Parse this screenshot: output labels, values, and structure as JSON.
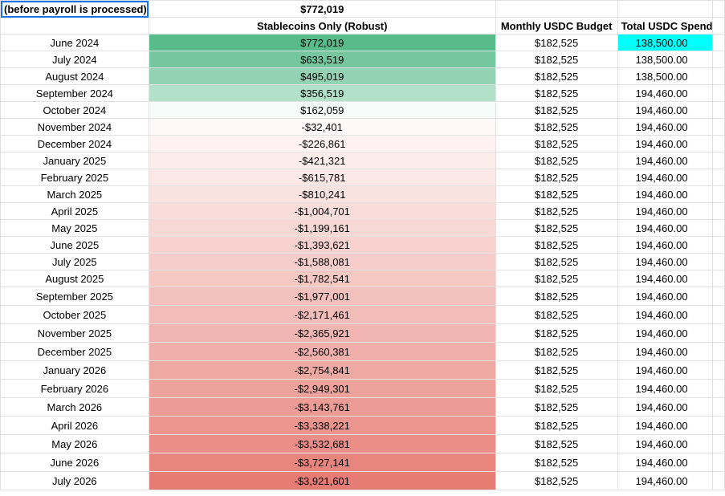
{
  "top": {
    "note": "(before payroll is processed)",
    "start_value": "$772,019"
  },
  "headers": {
    "col_b": "Stablecoins Only (Robust)",
    "col_c": "Monthly USDC Budget",
    "col_d": "Total USDC Spend"
  },
  "colors": {
    "positive_max": "#57bb8a",
    "neutral": "#ffffff",
    "negative_max": "#e67c73",
    "highlight": "#00ffff",
    "selection": "#1a73e8"
  },
  "rows": [
    {
      "month": "June 2024",
      "balance": "$772,019",
      "budget": "$182,525",
      "spend": "138,500.00",
      "level": 1.0
    },
    {
      "month": "July 2024",
      "balance": "$633,519",
      "budget": "$182,525",
      "spend": "138,500.00",
      "level": 0.82
    },
    {
      "month": "August 2024",
      "balance": "$495,019",
      "budget": "$182,525",
      "spend": "138,500.00",
      "level": 0.64
    },
    {
      "month": "September 2024",
      "balance": "$356,519",
      "budget": "$182,525",
      "spend": "194,460.00",
      "level": 0.46
    },
    {
      "month": "October 2024",
      "balance": "$162,059",
      "budget": "$182,525",
      "spend": "194,460.00",
      "level": 0.06
    },
    {
      "month": "November 2024",
      "balance": "-$32,401",
      "budget": "$182,525",
      "spend": "194,460.00",
      "level": -0.06
    },
    {
      "month": "December 2024",
      "balance": "-$226,861",
      "budget": "$182,525",
      "spend": "194,460.00",
      "level": -0.1
    },
    {
      "month": "January 2025",
      "balance": "-$421,321",
      "budget": "$182,525",
      "spend": "194,460.00",
      "level": -0.14
    },
    {
      "month": "February 2025",
      "balance": "-$615,781",
      "budget": "$182,525",
      "spend": "194,460.00",
      "level": -0.18
    },
    {
      "month": "March 2025",
      "balance": "-$810,241",
      "budget": "$182,525",
      "spend": "194,460.00",
      "level": -0.22
    },
    {
      "month": "April 2025",
      "balance": "-$1,004,701",
      "budget": "$182,525",
      "spend": "194,460.00",
      "level": -0.26
    },
    {
      "month": "May 2025",
      "balance": "-$1,199,161",
      "budget": "$182,525",
      "spend": "194,460.00",
      "level": -0.3
    },
    {
      "month": "June 2025",
      "balance": "-$1,393,621",
      "budget": "$182,525",
      "spend": "194,460.00",
      "level": -0.34
    },
    {
      "month": "July 2025",
      "balance": "-$1,588,081",
      "budget": "$182,525",
      "spend": "194,460.00",
      "level": -0.38
    },
    {
      "month": "August 2025",
      "balance": "-$1,782,541",
      "budget": "$182,525",
      "spend": "194,460.00",
      "level": -0.42
    },
    {
      "month": "September 2025",
      "balance": "-$1,977,001",
      "budget": "$182,525",
      "spend": "194,460.00",
      "level": -0.47
    },
    {
      "month": "October 2025",
      "balance": "-$2,171,461",
      "budget": "$182,525",
      "spend": "194,460.00",
      "level": -0.51
    },
    {
      "month": "November 2025",
      "balance": "-$2,365,921",
      "budget": "$182,525",
      "spend": "194,460.00",
      "level": -0.56
    },
    {
      "month": "December 2025",
      "balance": "-$2,560,381",
      "budget": "$182,525",
      "spend": "194,460.00",
      "level": -0.61
    },
    {
      "month": "January 2026",
      "balance": "-$2,754,841",
      "budget": "$182,525",
      "spend": "194,460.00",
      "level": -0.66
    },
    {
      "month": "February 2026",
      "balance": "-$2,949,301",
      "budget": "$182,525",
      "spend": "194,460.00",
      "level": -0.71
    },
    {
      "month": "March 2026",
      "balance": "-$3,143,761",
      "budget": "$182,525",
      "spend": "194,460.00",
      "level": -0.76
    },
    {
      "month": "April 2026",
      "balance": "-$3,338,221",
      "budget": "$182,525",
      "spend": "194,460.00",
      "level": -0.81
    },
    {
      "month": "May 2026",
      "balance": "-$3,532,681",
      "budget": "$182,525",
      "spend": "194,460.00",
      "level": -0.86
    },
    {
      "month": "June 2026",
      "balance": "-$3,727,141",
      "budget": "$182,525",
      "spend": "194,460.00",
      "level": -0.93
    },
    {
      "month": "July 2026",
      "balance": "-$3,921,601",
      "budget": "$182,525",
      "spend": "194,460.00",
      "level": -1.0
    }
  ]
}
